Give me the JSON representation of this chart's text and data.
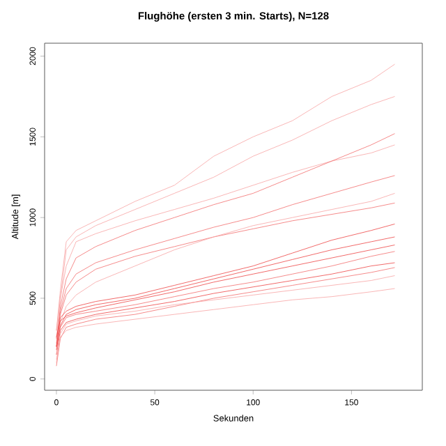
{
  "chart_data": {
    "type": "line",
    "title": "Flughöhe (ersten 3 min. Starts), N=128",
    "xlabel": "Sekunden",
    "ylabel": "Altitude [m]",
    "x": [
      0,
      2,
      5,
      10,
      20,
      40,
      60,
      80,
      100,
      120,
      140,
      160,
      172
    ],
    "xlim": [
      -6,
      186
    ],
    "ylim": [
      -70,
      2080
    ],
    "xticks": [
      0,
      50,
      100,
      150
    ],
    "yticks": [
      0,
      500,
      1000,
      1500,
      2000
    ],
    "line_style": "solid",
    "series": [
      {
        "color": "#f26d6d",
        "values": [
          80,
          250,
          320,
          340,
          370,
          400,
          450,
          500,
          540,
          580,
          620,
          660,
          690
        ]
      },
      {
        "color": "#ee4444",
        "values": [
          150,
          300,
          350,
          370,
          400,
          440,
          480,
          530,
          570,
          610,
          650,
          700,
          720
        ]
      },
      {
        "color": "#f26d6d",
        "values": [
          200,
          320,
          380,
          400,
          420,
          460,
          510,
          560,
          600,
          650,
          700,
          760,
          790
        ]
      },
      {
        "color": "#f7a3a3",
        "values": [
          100,
          280,
          340,
          360,
          390,
          420,
          460,
          490,
          520,
          550,
          580,
          610,
          640
        ]
      },
      {
        "color": "#f26d6d",
        "values": [
          250,
          400,
          520,
          600,
          680,
          760,
          820,
          880,
          930,
          980,
          1020,
          1060,
          1090
        ]
      },
      {
        "color": "#f7a3a3",
        "values": [
          300,
          500,
          700,
          850,
          900,
          980,
          1050,
          1120,
          1200,
          1280,
          1350,
          1400,
          1450
        ]
      },
      {
        "color": "#f26d6d",
        "values": [
          200,
          450,
          620,
          750,
          820,
          920,
          1000,
          1080,
          1150,
          1250,
          1350,
          1450,
          1520
        ]
      },
      {
        "color": "#f7a3a3",
        "values": [
          150,
          350,
          450,
          520,
          600,
          700,
          800,
          880,
          950,
          1000,
          1050,
          1100,
          1150
        ]
      },
      {
        "color": "#f7a3a3",
        "values": [
          250,
          500,
          800,
          880,
          950,
          1050,
          1150,
          1250,
          1380,
          1480,
          1600,
          1700,
          1750
        ]
      },
      {
        "color": "#f7a3a3",
        "values": [
          300,
          550,
          850,
          920,
          980,
          1100,
          1200,
          1380,
          1500,
          1600,
          1750,
          1850,
          1950
        ]
      },
      {
        "color": "#f7a3a3",
        "values": [
          120,
          260,
          300,
          320,
          340,
          370,
          400,
          430,
          460,
          490,
          510,
          540,
          560
        ]
      },
      {
        "color": "#ee4444",
        "values": [
          200,
          380,
          420,
          450,
          480,
          520,
          580,
          640,
          700,
          780,
          860,
          920,
          960
        ]
      },
      {
        "color": "#ee4444",
        "values": [
          180,
          330,
          400,
          430,
          460,
          500,
          560,
          620,
          680,
          740,
          800,
          850,
          880
        ]
      },
      {
        "color": "#f26d6d",
        "values": [
          220,
          420,
          560,
          650,
          720,
          800,
          870,
          940,
          1000,
          1080,
          1150,
          1220,
          1260
        ]
      },
      {
        "color": "#ee4444",
        "values": [
          260,
          360,
          390,
          410,
          440,
          490,
          540,
          600,
          650,
          700,
          750,
          800,
          830
        ]
      }
    ]
  }
}
